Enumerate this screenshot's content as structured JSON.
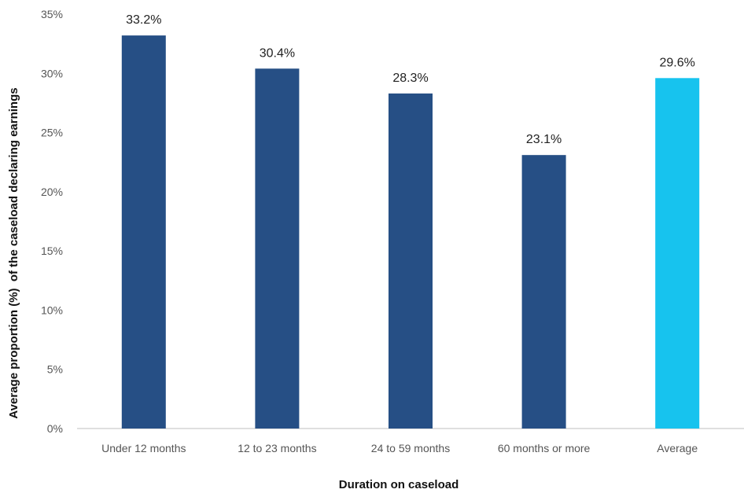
{
  "chart_data": {
    "type": "bar",
    "categories": [
      "Under 12 months",
      "12 to 23 months",
      "24 to 59 months",
      "60 months or more",
      "Average"
    ],
    "values": [
      33.2,
      30.4,
      28.3,
      23.1,
      29.6
    ],
    "data_labels": [
      "33.2%",
      "30.4%",
      "28.3%",
      "23.1%",
      "29.6%"
    ],
    "bar_colors": [
      "#264f85",
      "#264f85",
      "#264f85",
      "#264f85",
      "#17c3ee"
    ],
    "xlabel": "Duration on caseload",
    "ylabel": "Average proportion (%)  of the caseload declaring earnings",
    "ylim": [
      0,
      35
    ],
    "yticks": [
      0,
      5,
      10,
      15,
      20,
      25,
      30,
      35
    ],
    "ytick_labels": [
      "0%",
      "5%",
      "10%",
      "15%",
      "20%",
      "25%",
      "30%",
      "35%"
    ],
    "grid": false,
    "legend": "none"
  }
}
